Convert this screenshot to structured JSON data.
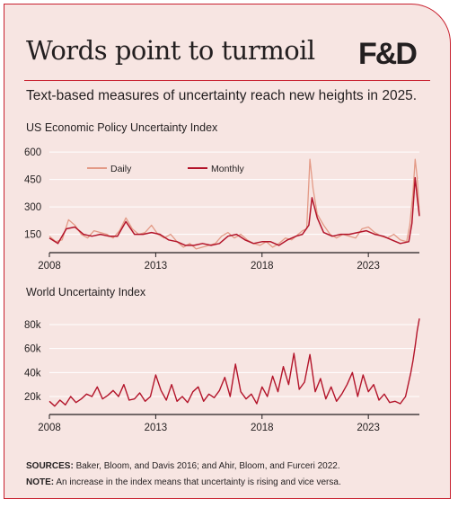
{
  "title": "Words point to turmoil",
  "logo": "F&D",
  "subtitle": "Text-based measures of uncertainty reach new heights in 2025.",
  "footer": {
    "sources_label": "SOURCES:",
    "sources_text": "Baker, Bloom, and Davis 2016; and Ahir, Bloom, and Furceri 2022.",
    "note_label": "NOTE:",
    "note_text": "An increase in the index means that uncertainty is rising and vice versa."
  },
  "colors": {
    "accent": "#c8202e",
    "daily": "#e39a86",
    "monthly": "#b3142a",
    "background": "#f7e5e2"
  },
  "chart_data": [
    {
      "type": "line",
      "title": "US Economic Policy Uncertainty Index",
      "xlim": [
        2008,
        2025.4
      ],
      "ylim": [
        50,
        620
      ],
      "xticks": [
        2008,
        2013,
        2018,
        2023
      ],
      "yticks": [
        150,
        300,
        450,
        600
      ],
      "legend": "top-left",
      "series": [
        {
          "name": "Daily",
          "x": [
            2008,
            2008.3,
            2008.6,
            2008.9,
            2009.2,
            2009.5,
            2009.8,
            2010.1,
            2010.4,
            2010.7,
            2011.0,
            2011.3,
            2011.6,
            2011.9,
            2012.2,
            2012.5,
            2012.8,
            2013.1,
            2013.4,
            2013.7,
            2014.0,
            2014.3,
            2014.6,
            2014.9,
            2015.2,
            2015.5,
            2015.8,
            2016.1,
            2016.4,
            2016.7,
            2017.0,
            2017.3,
            2017.6,
            2017.9,
            2018.2,
            2018.5,
            2018.8,
            2019.1,
            2019.4,
            2019.7,
            2019.9,
            2020.1,
            2020.25,
            2020.4,
            2020.6,
            2020.9,
            2021.2,
            2021.5,
            2021.8,
            2022.1,
            2022.4,
            2022.7,
            2023.0,
            2023.3,
            2023.6,
            2023.9,
            2024.2,
            2024.5,
            2024.8,
            2024.95,
            2025.1,
            2025.2,
            2025.3,
            2025.4
          ],
          "y": [
            140,
            110,
            120,
            230,
            200,
            150,
            130,
            170,
            160,
            150,
            130,
            170,
            240,
            180,
            150,
            160,
            200,
            150,
            130,
            150,
            110,
            80,
            100,
            70,
            80,
            90,
            100,
            140,
            160,
            130,
            150,
            120,
            100,
            90,
            110,
            80,
            100,
            130,
            120,
            150,
            170,
            180,
            560,
            400,
            260,
            200,
            150,
            130,
            150,
            140,
            130,
            180,
            190,
            160,
            140,
            130,
            150,
            120,
            110,
            200,
            380,
            560,
            460,
            260
          ]
        },
        {
          "name": "Monthly",
          "x": [
            2008,
            2008.4,
            2008.8,
            2009.2,
            2009.6,
            2010.0,
            2010.4,
            2010.8,
            2011.2,
            2011.6,
            2012.0,
            2012.4,
            2012.8,
            2013.2,
            2013.6,
            2014.0,
            2014.4,
            2014.8,
            2015.2,
            2015.6,
            2016.0,
            2016.4,
            2016.8,
            2017.2,
            2017.6,
            2018.0,
            2018.4,
            2018.8,
            2019.2,
            2019.6,
            2019.9,
            2020.2,
            2020.35,
            2020.6,
            2020.9,
            2021.3,
            2021.7,
            2022.1,
            2022.5,
            2022.9,
            2023.3,
            2023.7,
            2024.1,
            2024.5,
            2024.9,
            2025.05,
            2025.2,
            2025.3,
            2025.4
          ],
          "y": [
            130,
            100,
            180,
            190,
            150,
            140,
            150,
            140,
            140,
            220,
            150,
            150,
            160,
            150,
            120,
            110,
            90,
            90,
            100,
            90,
            100,
            140,
            150,
            120,
            100,
            110,
            110,
            90,
            120,
            140,
            150,
            200,
            350,
            240,
            160,
            140,
            150,
            150,
            160,
            170,
            150,
            140,
            120,
            100,
            110,
            210,
            460,
            350,
            250
          ]
        }
      ]
    },
    {
      "type": "line",
      "title": "World Uncertainty Index",
      "xlim": [
        2008,
        2025.4
      ],
      "ylim": [
        5000,
        92000
      ],
      "xticks": [
        2008,
        2013,
        2018,
        2023
      ],
      "yticks": [
        20000,
        40000,
        60000,
        80000
      ],
      "ytick_labels": [
        "20k",
        "40k",
        "60k",
        "80k"
      ],
      "series": [
        {
          "name": "",
          "x": [
            2008,
            2008.25,
            2008.5,
            2008.75,
            2009,
            2009.25,
            2009.5,
            2009.75,
            2010,
            2010.25,
            2010.5,
            2010.75,
            2011,
            2011.25,
            2011.5,
            2011.75,
            2012,
            2012.25,
            2012.5,
            2012.75,
            2013,
            2013.25,
            2013.5,
            2013.75,
            2014,
            2014.25,
            2014.5,
            2014.75,
            2015,
            2015.25,
            2015.5,
            2015.75,
            2016,
            2016.25,
            2016.5,
            2016.75,
            2017,
            2017.25,
            2017.5,
            2017.75,
            2018,
            2018.25,
            2018.5,
            2018.75,
            2019,
            2019.25,
            2019.5,
            2019.75,
            2020,
            2020.25,
            2020.5,
            2020.75,
            2021,
            2021.25,
            2021.5,
            2021.75,
            2022,
            2022.25,
            2022.5,
            2022.75,
            2023,
            2023.25,
            2023.5,
            2023.75,
            2024,
            2024.25,
            2024.5,
            2024.75,
            2025,
            2025.1,
            2025.2,
            2025.3,
            2025.4
          ],
          "y": [
            16000,
            12000,
            17000,
            13000,
            20000,
            15000,
            18000,
            22000,
            20000,
            28000,
            18000,
            21000,
            25000,
            20000,
            30000,
            17000,
            18000,
            23000,
            16000,
            20000,
            38000,
            25000,
            17000,
            30000,
            16000,
            20000,
            15000,
            24000,
            28000,
            16000,
            22000,
            19000,
            25000,
            36000,
            20000,
            47000,
            24000,
            18000,
            22000,
            14000,
            28000,
            20000,
            37000,
            24000,
            45000,
            30000,
            56000,
            26000,
            32000,
            55000,
            24000,
            35000,
            18000,
            28000,
            16000,
            22000,
            30000,
            40000,
            20000,
            38000,
            24000,
            30000,
            17000,
            22000,
            15000,
            16000,
            14000,
            20000,
            40000,
            50000,
            62000,
            75000,
            85000
          ]
        }
      ]
    }
  ]
}
